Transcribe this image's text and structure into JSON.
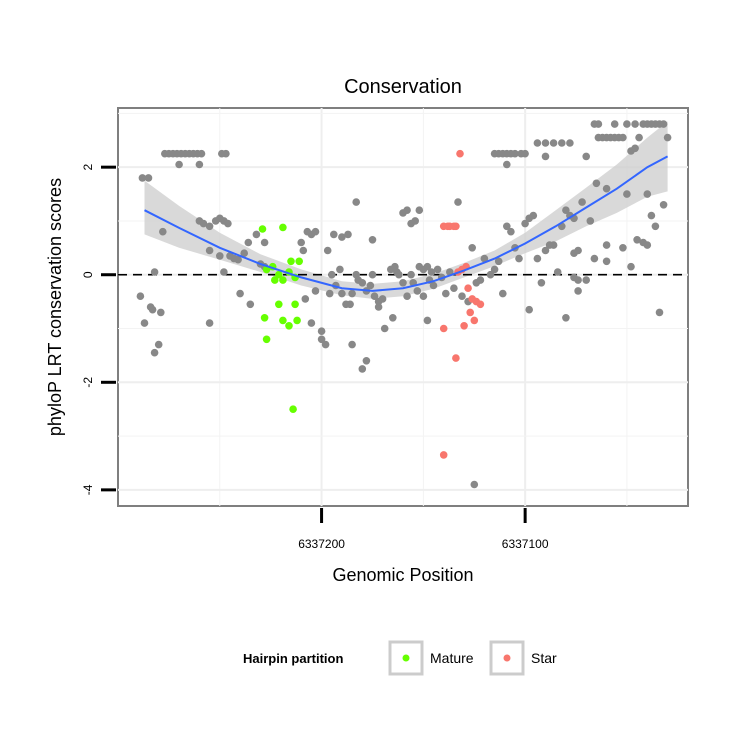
{
  "chart_data": {
    "type": "scatter",
    "title": "Conservation",
    "xlabel": "Genomic Position",
    "ylabel": "phyloP LRT conservation scores",
    "x_reversed": true,
    "xlim": [
      6337300,
      6337020
    ],
    "ylim": [
      -4.3,
      3.1
    ],
    "x_ticks": [
      6337200,
      6337100
    ],
    "x_tick_labels": [
      "6337200",
      "6337100"
    ],
    "y_ticks": [
      -4,
      -2,
      0,
      2
    ],
    "y_tick_labels": [
      "-4",
      "-2",
      "0",
      "2"
    ],
    "grid": true,
    "reference_line": {
      "y": 0,
      "style": "dashed"
    },
    "smooth": {
      "color": "#3366ff",
      "band_color": "#cccccc",
      "x": [
        6337287,
        6337270,
        6337250,
        6337230,
        6337210,
        6337190,
        6337175,
        6337160,
        6337145,
        6337130,
        6337115,
        6337100,
        6337085,
        6337070,
        6337055,
        6337040,
        6337030
      ],
      "y": [
        1.2,
        0.87,
        0.5,
        0.2,
        -0.05,
        -0.25,
        -0.3,
        -0.25,
        -0.12,
        0.08,
        0.3,
        0.58,
        0.9,
        1.25,
        1.6,
        2.0,
        2.2
      ],
      "lower": [
        0.75,
        0.5,
        0.28,
        0.05,
        -0.2,
        -0.38,
        -0.45,
        -0.4,
        -0.26,
        -0.05,
        0.16,
        0.4,
        0.62,
        0.9,
        1.15,
        1.45,
        1.55
      ],
      "upper": [
        1.75,
        1.28,
        0.78,
        0.38,
        0.1,
        -0.12,
        -0.17,
        -0.12,
        0.02,
        0.22,
        0.45,
        0.78,
        1.2,
        1.62,
        2.05,
        2.55,
        2.85
      ]
    },
    "legend": {
      "title": "Hairpin partition",
      "position": "bottom",
      "entries": [
        {
          "label": "Mature",
          "color": "#66ff00"
        },
        {
          "label": "Star",
          "color": "#f8766d"
        }
      ]
    },
    "series": [
      {
        "color": "#888888",
        "points": [
          [
            6337288,
            1.8
          ],
          [
            6337285,
            1.8
          ],
          [
            6337284,
            -0.6
          ],
          [
            6337287,
            -0.9
          ],
          [
            6337289,
            -0.4
          ],
          [
            6337282,
            -1.45
          ],
          [
            6337280,
            -1.3
          ],
          [
            6337278,
            0.8
          ],
          [
            6337282,
            0.05
          ],
          [
            6337279,
            -0.7
          ],
          [
            6337283,
            -0.65
          ],
          [
            6337277,
            2.25
          ],
          [
            6337275,
            2.25
          ],
          [
            6337273,
            2.25
          ],
          [
            6337271,
            2.25
          ],
          [
            6337269,
            2.25
          ],
          [
            6337267,
            2.25
          ],
          [
            6337265,
            2.25
          ],
          [
            6337263,
            2.25
          ],
          [
            6337261,
            2.25
          ],
          [
            6337259,
            2.25
          ],
          [
            6337249,
            2.25
          ],
          [
            6337247,
            2.25
          ],
          [
            6337270,
            2.05
          ],
          [
            6337260,
            2.05
          ],
          [
            6337260,
            1.0
          ],
          [
            6337258,
            0.95
          ],
          [
            6337252,
            1.0
          ],
          [
            6337250,
            1.05
          ],
          [
            6337248,
            1.0
          ],
          [
            6337255,
            0.9
          ],
          [
            6337246,
            0.95
          ],
          [
            6337255,
            0.45
          ],
          [
            6337250,
            0.35
          ],
          [
            6337245,
            0.35
          ],
          [
            6337243,
            0.3
          ],
          [
            6337241,
            0.28
          ],
          [
            6337255,
            -0.9
          ],
          [
            6337240,
            -0.35
          ],
          [
            6337238,
            0.4
          ],
          [
            6337235,
            -0.55
          ],
          [
            6337230,
            0.2
          ],
          [
            6337228,
            0.15
          ],
          [
            6337236,
            0.6
          ],
          [
            6337232,
            0.75
          ],
          [
            6337228,
            0.6
          ],
          [
            6337248,
            0.05
          ],
          [
            6337210,
            0.6
          ],
          [
            6337207,
            0.8
          ],
          [
            6337205,
            0.75
          ],
          [
            6337203,
            0.8
          ],
          [
            6337209,
            0.45
          ],
          [
            6337208,
            -0.45
          ],
          [
            6337205,
            -0.9
          ],
          [
            6337203,
            -0.3
          ],
          [
            6337200,
            -1.05
          ],
          [
            6337198,
            -1.3
          ],
          [
            6337200,
            -1.2
          ],
          [
            6337196,
            -0.35
          ],
          [
            6337193,
            -0.2
          ],
          [
            6337190,
            -0.35
          ],
          [
            6337188,
            -0.55
          ],
          [
            6337186,
            -0.55
          ],
          [
            6337195,
            0.0
          ],
          [
            6337197,
            0.45
          ],
          [
            6337191,
            0.1
          ],
          [
            6337185,
            -0.35
          ],
          [
            6337194,
            0.75
          ],
          [
            6337190,
            0.7
          ],
          [
            6337187,
            0.75
          ],
          [
            6337183,
            0.0
          ],
          [
            6337182,
            -0.1
          ],
          [
            6337180,
            -0.15
          ],
          [
            6337178,
            -0.3
          ],
          [
            6337176,
            -0.2
          ],
          [
            6337174,
            -0.4
          ],
          [
            6337172,
            -0.5
          ],
          [
            6337170,
            -0.45
          ],
          [
            6337172,
            -0.6
          ],
          [
            6337169,
            -1.0
          ],
          [
            6337180,
            -1.75
          ],
          [
            6337178,
            -1.6
          ],
          [
            6337185,
            -1.3
          ],
          [
            6337183,
            1.35
          ],
          [
            6337175,
            0.65
          ],
          [
            6337175,
            0.0
          ],
          [
            6337166,
            0.1
          ],
          [
            6337164,
            0.15
          ],
          [
            6337162,
            0.0
          ],
          [
            6337160,
            -0.15
          ],
          [
            6337158,
            -0.4
          ],
          [
            6337165,
            -0.8
          ],
          [
            6337163,
            0.05
          ],
          [
            6337156,
            0.0
          ],
          [
            6337155,
            -0.15
          ],
          [
            6337153,
            -0.3
          ],
          [
            6337150,
            -0.4
          ],
          [
            6337148,
            -0.85
          ],
          [
            6337147,
            -0.1
          ],
          [
            6337145,
            -0.2
          ],
          [
            6337160,
            1.15
          ],
          [
            6337158,
            1.2
          ],
          [
            6337156,
            0.95
          ],
          [
            6337154,
            1.0
          ],
          [
            6337152,
            1.2
          ],
          [
            6337152,
            0.15
          ],
          [
            6337150,
            0.1
          ],
          [
            6337148,
            0.15
          ],
          [
            6337146,
            0.05
          ],
          [
            6337143,
            0.1
          ],
          [
            6337141,
            -0.05
          ],
          [
            6337139,
            -0.35
          ],
          [
            6337137,
            0.05
          ],
          [
            6337135,
            -0.25
          ],
          [
            6337133,
            1.35
          ],
          [
            6337131,
            -0.4
          ],
          [
            6337128,
            -0.5
          ],
          [
            6337126,
            0.5
          ],
          [
            6337124,
            -0.15
          ],
          [
            6337122,
            -0.1
          ],
          [
            6337120,
            0.3
          ],
          [
            6337125,
            -3.9
          ],
          [
            6337117,
            0.0
          ],
          [
            6337115,
            0.1
          ],
          [
            6337113,
            0.25
          ],
          [
            6337111,
            -0.35
          ],
          [
            6337109,
            0.9
          ],
          [
            6337107,
            0.8
          ],
          [
            6337105,
            0.5
          ],
          [
            6337103,
            0.3
          ],
          [
            6337115,
            2.25
          ],
          [
            6337113,
            2.25
          ],
          [
            6337111,
            2.25
          ],
          [
            6337109,
            2.25
          ],
          [
            6337107,
            2.25
          ],
          [
            6337105,
            2.25
          ],
          [
            6337102,
            2.25
          ],
          [
            6337100,
            2.25
          ],
          [
            6337109,
            2.05
          ],
          [
            6337100,
            0.95
          ],
          [
            6337098,
            1.05
          ],
          [
            6337096,
            1.1
          ],
          [
            6337094,
            0.3
          ],
          [
            6337092,
            -0.15
          ],
          [
            6337090,
            0.45
          ],
          [
            6337088,
            0.55
          ],
          [
            6337086,
            0.55
          ],
          [
            6337094,
            2.45
          ],
          [
            6337090,
            2.45
          ],
          [
            6337086,
            2.45
          ],
          [
            6337082,
            2.45
          ],
          [
            6337078,
            2.45
          ],
          [
            6337090,
            2.2
          ],
          [
            6337098,
            -0.65
          ],
          [
            6337084,
            0.05
          ],
          [
            6337080,
            -0.8
          ],
          [
            6337082,
            0.9
          ],
          [
            6337076,
            1.05
          ],
          [
            6337080,
            1.2
          ],
          [
            6337078,
            1.1
          ],
          [
            6337076,
            0.4
          ],
          [
            6337074,
            0.45
          ],
          [
            6337072,
            1.35
          ],
          [
            6337070,
            2.2
          ],
          [
            6337068,
            1.0
          ],
          [
            6337066,
            2.8
          ],
          [
            6337064,
            2.8
          ],
          [
            6337064,
            2.55
          ],
          [
            6337062,
            2.55
          ],
          [
            6337060,
            2.55
          ],
          [
            6337058,
            2.55
          ],
          [
            6337056,
            2.55
          ],
          [
            6337054,
            2.55
          ],
          [
            6337052,
            2.55
          ],
          [
            6337056,
            2.8
          ],
          [
            6337050,
            2.8
          ],
          [
            6337046,
            2.8
          ],
          [
            6337042,
            2.8
          ],
          [
            6337040,
            2.8
          ],
          [
            6337038,
            2.8
          ],
          [
            6337036,
            2.8
          ],
          [
            6337034,
            2.8
          ],
          [
            6337032,
            2.8
          ],
          [
            6337030,
            2.55
          ],
          [
            6337044,
            2.55
          ],
          [
            6337048,
            2.3
          ],
          [
            6337046,
            2.35
          ],
          [
            6337050,
            1.5
          ],
          [
            6337040,
            1.5
          ],
          [
            6337060,
            1.6
          ],
          [
            6337065,
            1.7
          ],
          [
            6337060,
            0.25
          ],
          [
            6337066,
            0.3
          ],
          [
            6337070,
            -0.1
          ],
          [
            6337076,
            -0.05
          ],
          [
            6337074,
            -0.3
          ],
          [
            6337074,
            -0.1
          ],
          [
            6337060,
            0.55
          ],
          [
            6337052,
            0.5
          ],
          [
            6337048,
            0.15
          ],
          [
            6337045,
            0.65
          ],
          [
            6337042,
            0.6
          ],
          [
            6337040,
            0.55
          ],
          [
            6337038,
            1.1
          ],
          [
            6337036,
            0.9
          ],
          [
            6337034,
            -0.7
          ],
          [
            6337032,
            1.3
          ]
        ]
      },
      {
        "name": "Mature",
        "color": "#66ff00",
        "points": [
          [
            6337229,
            0.85
          ],
          [
            6337219,
            0.88
          ],
          [
            6337221,
            0.0
          ],
          [
            6337216,
            0.05
          ],
          [
            6337215,
            0.25
          ],
          [
            6337211,
            0.25
          ],
          [
            6337213,
            -0.05
          ],
          [
            6337224,
            0.15
          ],
          [
            6337227,
            0.1
          ],
          [
            6337223,
            -0.1
          ],
          [
            6337219,
            -0.1
          ],
          [
            6337221,
            -0.55
          ],
          [
            6337213,
            -0.55
          ],
          [
            6337228,
            -0.8
          ],
          [
            6337219,
            -0.85
          ],
          [
            6337216,
            -0.95
          ],
          [
            6337212,
            -0.85
          ],
          [
            6337227,
            -1.2
          ],
          [
            6337214,
            -2.5
          ]
        ]
      },
      {
        "name": "Star",
        "color": "#f8766d",
        "points": [
          [
            6337140,
            0.9
          ],
          [
            6337138,
            0.9
          ],
          [
            6337137,
            0.9
          ],
          [
            6337135,
            0.9
          ],
          [
            6337134,
            0.9
          ],
          [
            6337133,
            0.05
          ],
          [
            6337131,
            0.1
          ],
          [
            6337129,
            0.15
          ],
          [
            6337132,
            2.25
          ],
          [
            6337128,
            -0.25
          ],
          [
            6337126,
            -0.45
          ],
          [
            6337124,
            -0.5
          ],
          [
            6337122,
            -0.55
          ],
          [
            6337127,
            -0.7
          ],
          [
            6337125,
            -0.85
          ],
          [
            6337130,
            -0.95
          ],
          [
            6337140,
            -1.0
          ],
          [
            6337134,
            -1.55
          ],
          [
            6337140,
            -3.35
          ]
        ]
      }
    ]
  }
}
